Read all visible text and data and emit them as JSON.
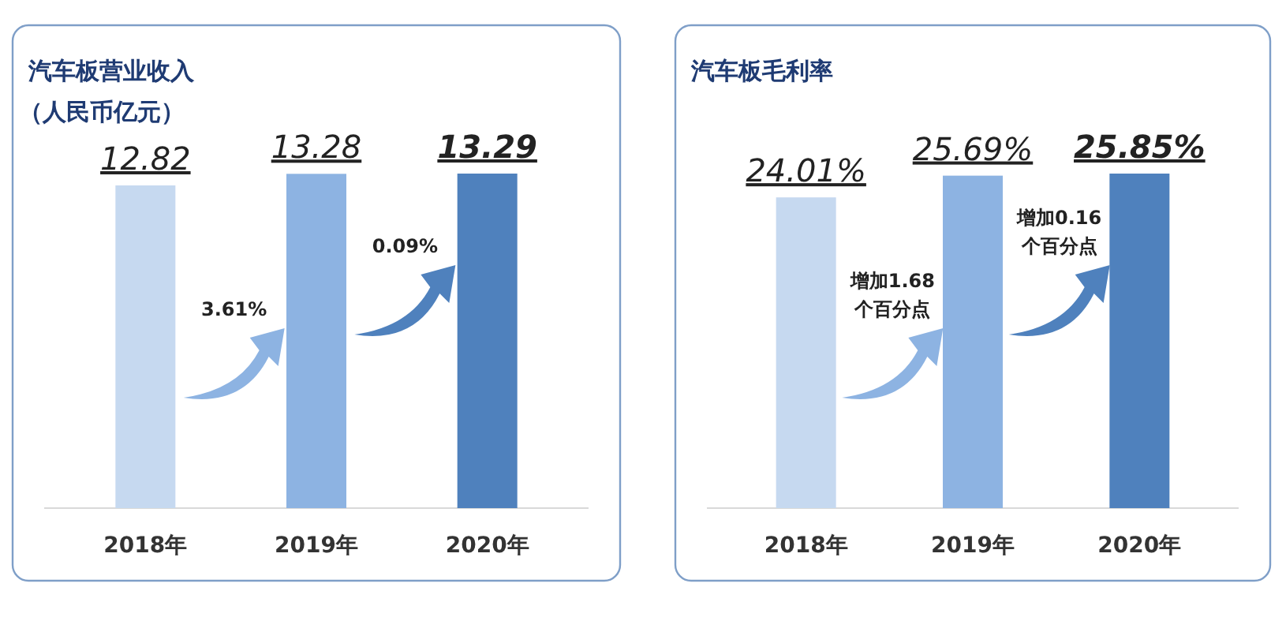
{
  "chart_data": [
    {
      "type": "bar",
      "title": "汽车板营业收入",
      "subtitle": "（人民币亿元）",
      "categories": [
        "2018年",
        "2019年",
        "2020年"
      ],
      "values": [
        12.82,
        13.28,
        13.29
      ],
      "colors": [
        "#c6d9f0",
        "#8db3e2",
        "#4f81bd"
      ],
      "data_labels": true,
      "annotations": [
        "3.61%",
        "0.09%"
      ]
    },
    {
      "type": "bar",
      "title": "汽车板毛利率",
      "categories": [
        "2018年",
        "2019年",
        "2020年"
      ],
      "values": [
        24.01,
        25.69,
        25.85
      ],
      "colors": [
        "#c6d9f0",
        "#8db3e2",
        "#4f81bd"
      ],
      "value_labels": [
        "24.01%",
        "25.69%",
        "25.85%"
      ],
      "annotations": [
        "增加1.68\n个百分点",
        "增加0.16\n个百分点"
      ]
    }
  ]
}
